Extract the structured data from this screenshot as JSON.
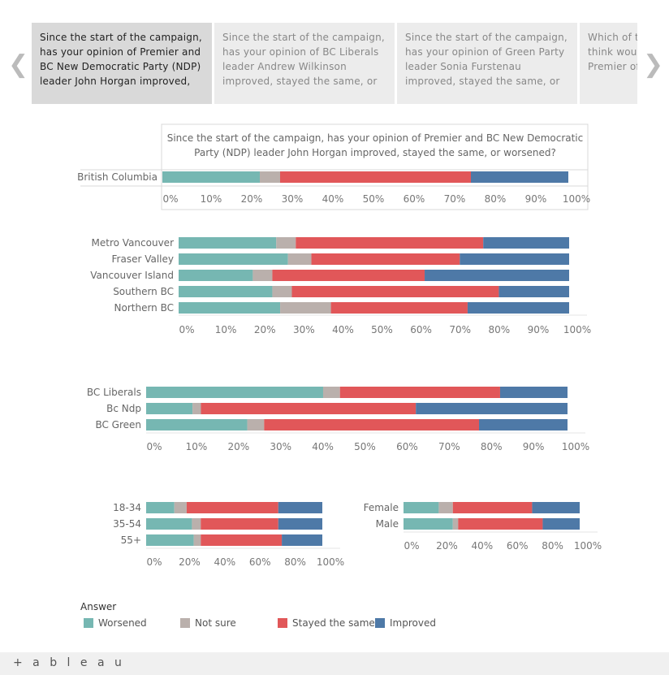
{
  "tabs": [
    {
      "label": "Since the start of the campaign, has your opinion of Premier and BC New Democratic Party (NDP) leader John Horgan improved, stayed the same, or worsened?",
      "active": true
    },
    {
      "label": "Since the start of the campaign, has your opinion of BC Liberals leader Andrew Wilkinson improved, stayed the same, or worsened?",
      "active": false
    },
    {
      "label": "Since the start of the campaign, has your opinion of Green Party leader Sonia Furstenau improved, stayed the same, or worsened?",
      "active": false
    },
    {
      "label": "Which of the leaders do you think would make the best Premier of BC?",
      "active": false
    }
  ],
  "nav": {
    "prev_icon": "chevron-left-icon",
    "next_icon": "chevron-right-icon"
  },
  "chart_title": "Since the start of the campaign, has your opinion of Premier and BC New Democratic Party (NDP) leader John Horgan improved, stayed the same, or worsened?",
  "legend": {
    "title": "Answer",
    "items": [
      {
        "label": "Worsened",
        "color": "#76b7b2"
      },
      {
        "label": "Not sure",
        "color": "#bab0ac"
      },
      {
        "label": "Stayed the same",
        "color": "#e15759"
      },
      {
        "label": "Improved",
        "color": "#4e79a7"
      }
    ]
  },
  "footer": {
    "logo": "+ a b l e a u"
  },
  "chart_data": [
    {
      "type": "bar",
      "orientation": "horizontal",
      "stacked": "percent",
      "categories": [
        "British Columbia"
      ],
      "series": [
        {
          "name": "Worsened",
          "values": [
            24
          ]
        },
        {
          "name": "Not sure",
          "values": [
            5
          ]
        },
        {
          "name": "Stayed the same",
          "values": [
            47
          ]
        },
        {
          "name": "Improved",
          "values": [
            24
          ]
        }
      ],
      "xticks": [
        "0%",
        "10%",
        "20%",
        "30%",
        "40%",
        "50%",
        "60%",
        "70%",
        "80%",
        "90%",
        "100%"
      ],
      "xlim": [
        0,
        100
      ]
    },
    {
      "type": "bar",
      "orientation": "horizontal",
      "stacked": "percent",
      "categories": [
        "Metro Vancouver",
        "Fraser Valley",
        "Vancouver Island",
        "Southern BC",
        "Northern BC"
      ],
      "series": [
        {
          "name": "Worsened",
          "values": [
            25,
            28,
            19,
            24,
            26
          ]
        },
        {
          "name": "Not sure",
          "values": [
            5,
            6,
            5,
            5,
            13
          ]
        },
        {
          "name": "Stayed the same",
          "values": [
            48,
            38,
            39,
            53,
            35
          ]
        },
        {
          "name": "Improved",
          "values": [
            22,
            28,
            37,
            18,
            26
          ]
        }
      ],
      "xticks": [
        "0%",
        "10%",
        "20%",
        "30%",
        "40%",
        "50%",
        "60%",
        "70%",
        "80%",
        "90%",
        "100%"
      ],
      "xlim": [
        0,
        100
      ]
    },
    {
      "type": "bar",
      "orientation": "horizontal",
      "stacked": "percent",
      "categories": [
        "BC Liberals",
        "Bc Ndp",
        "BC Green"
      ],
      "series": [
        {
          "name": "Worsened",
          "values": [
            42,
            11,
            24
          ]
        },
        {
          "name": "Not sure",
          "values": [
            4,
            2,
            4
          ]
        },
        {
          "name": "Stayed the same",
          "values": [
            38,
            51,
            51
          ]
        },
        {
          "name": "Improved",
          "values": [
            16,
            36,
            21
          ]
        }
      ],
      "xticks": [
        "0%",
        "10%",
        "20%",
        "30%",
        "40%",
        "50%",
        "60%",
        "70%",
        "80%",
        "90%",
        "100%"
      ],
      "xlim": [
        0,
        100
      ]
    },
    {
      "type": "bar",
      "orientation": "horizontal",
      "stacked": "percent",
      "categories": [
        "18-34",
        "35-54",
        "55+"
      ],
      "series": [
        {
          "name": "Worsened",
          "values": [
            16,
            26,
            27
          ]
        },
        {
          "name": "Not sure",
          "values": [
            7,
            5,
            4
          ]
        },
        {
          "name": "Stayed the same",
          "values": [
            52,
            44,
            46
          ]
        },
        {
          "name": "Improved",
          "values": [
            25,
            25,
            23
          ]
        }
      ],
      "xticks": [
        "0%",
        "20%",
        "40%",
        "60%",
        "80%",
        "100%"
      ],
      "xlim": [
        0,
        100
      ]
    },
    {
      "type": "bar",
      "orientation": "horizontal",
      "stacked": "percent",
      "categories": [
        "Female",
        "Male"
      ],
      "series": [
        {
          "name": "Worsened",
          "values": [
            20,
            28
          ]
        },
        {
          "name": "Not sure",
          "values": [
            8,
            3
          ]
        },
        {
          "name": "Stayed the same",
          "values": [
            45,
            48
          ]
        },
        {
          "name": "Improved",
          "values": [
            27,
            21
          ]
        }
      ],
      "xticks": [
        "0%",
        "20%",
        "40%",
        "60%",
        "80%",
        "100%"
      ],
      "xlim": [
        0,
        100
      ]
    }
  ]
}
